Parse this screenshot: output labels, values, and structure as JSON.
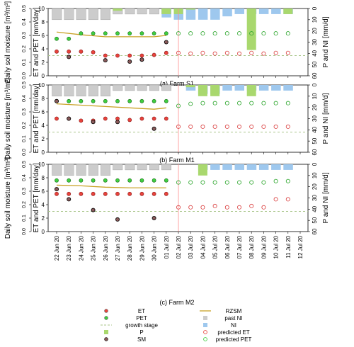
{
  "chart_data": {
    "type": "scatter",
    "dates": [
      "22 Jun 20",
      "23 Jun 20",
      "24 Jun 20",
      "25 Jun 20",
      "26 Jun 20",
      "27 Jun 20",
      "28 Jun 20",
      "29 Jun 20",
      "30 Jun 20",
      "01 Jul 20",
      "02 Jul 20",
      "03 Jul 20",
      "04 Jul 20",
      "05 Jul 20",
      "06 Jul 20",
      "07 Jul 20",
      "08 Jul 20",
      "09 Jul 20",
      "10 Jul 20",
      "11 Jul 20",
      "12 Jul 20"
    ],
    "current_date": "02 Jul 20",
    "left_axis": {
      "label": "ET and PET [mm/day]",
      "range": [
        0,
        10
      ],
      "ticks": [
        0,
        2,
        4,
        6,
        8,
        10
      ]
    },
    "sm_axis": {
      "label": "Daily soil moisture [m³/m³]",
      "range": [
        0,
        0.5
      ],
      "ticks": [
        "0.0",
        "0.1",
        "0.2",
        "0.3",
        "0.4",
        "0.5"
      ]
    },
    "right_axis": {
      "label": "P and NI [mm/d]",
      "range": [
        0,
        60
      ],
      "ticks": [
        0,
        10,
        20,
        30,
        40,
        50,
        60
      ],
      "inverted": true
    },
    "panels": [
      {
        "caption": "(a) Farm S1",
        "et": [
          3.6,
          3.6,
          3.6,
          3.5,
          3.0,
          3.0,
          3.0,
          3.0,
          3.1,
          3.4
        ],
        "pet": [
          5.5,
          5.5,
          6.3,
          6.3,
          6.3,
          6.3,
          6.3,
          6.3,
          6.3,
          6.3
        ],
        "sm": [
          null,
          2.8,
          null,
          null,
          2.3,
          null,
          2.1,
          2.4,
          null,
          5.0
        ],
        "rzsm": [
          [
            22,
            6.5
          ],
          [
            24,
            6.1
          ],
          [
            26,
            5.8
          ],
          [
            28,
            5.8
          ],
          [
            30,
            5.8
          ],
          [
            31,
            6.0
          ]
        ],
        "growth_stage": 3.0,
        "past_ni": [
          10,
          10,
          10,
          10,
          10,
          5,
          5,
          5,
          5,
          5
        ],
        "p": [
          null,
          null,
          null,
          null,
          null,
          2,
          null,
          null,
          null,
          5,
          5,
          1,
          null,
          null,
          null,
          null,
          37,
          null,
          null,
          5,
          null
        ],
        "ni": [
          null,
          null,
          null,
          null,
          null,
          null,
          null,
          null,
          null,
          8,
          10,
          10,
          10,
          10,
          7,
          5,
          5,
          5,
          5,
          5,
          null
        ],
        "pred_et": [
          null,
          null,
          null,
          null,
          null,
          null,
          null,
          null,
          null,
          null,
          3.4,
          3.3,
          3.4,
          3.3,
          3.4,
          3.3,
          3.4,
          3.3,
          3.4,
          3.4,
          null
        ],
        "pred_pet": [
          null,
          null,
          null,
          null,
          null,
          null,
          null,
          null,
          null,
          null,
          6.3,
          6.3,
          6.3,
          6.3,
          6.3,
          6.3,
          6.3,
          6.3,
          6.3,
          6.3,
          null
        ]
      },
      {
        "caption": "(b) Farm M1",
        "et": [
          5.0,
          5.0,
          4.7,
          4.7,
          5.0,
          5.0,
          4.8,
          5.0,
          5.0,
          5.0
        ],
        "pet": [
          7.6,
          7.6,
          7.6,
          7.6,
          7.6,
          7.6,
          7.6,
          7.6,
          7.6,
          7.6
        ],
        "sm": [
          7.6,
          5.0,
          null,
          4.5,
          null,
          4.5,
          null,
          null,
          3.5,
          null
        ],
        "rzsm": [
          [
            22,
            7.2
          ],
          [
            24,
            7.0
          ],
          [
            26,
            6.8
          ],
          [
            28,
            6.6
          ],
          [
            30,
            6.4
          ],
          [
            31,
            6.6
          ]
        ],
        "growth_stage": 3.0,
        "past_ni": [
          10,
          10,
          10,
          10,
          10,
          5,
          5,
          5,
          5,
          5
        ],
        "p": [
          null,
          null,
          null,
          null,
          null,
          null,
          null,
          null,
          null,
          null,
          null,
          2,
          10,
          10,
          null,
          null,
          10,
          null,
          null,
          null,
          null
        ],
        "ni": [
          null,
          null,
          null,
          null,
          null,
          null,
          null,
          null,
          null,
          null,
          null,
          5,
          8,
          8,
          5,
          5,
          5,
          5,
          5,
          5,
          null
        ],
        "pred_et": [
          null,
          null,
          null,
          null,
          null,
          null,
          null,
          null,
          null,
          null,
          3.8,
          3.8,
          3.8,
          3.8,
          3.8,
          3.8,
          3.8,
          3.8,
          3.8,
          3.8,
          null
        ],
        "pred_pet": [
          null,
          null,
          null,
          null,
          null,
          null,
          null,
          null,
          null,
          null,
          6.9,
          7.2,
          7.3,
          7.3,
          7.3,
          7.3,
          7.3,
          7.3,
          7.3,
          7.3,
          null
        ]
      },
      {
        "caption": "(c) Farm M2",
        "et": [
          5.6,
          5.6,
          5.6,
          5.6,
          5.6,
          5.6,
          5.6,
          5.6,
          5.6,
          5.6
        ],
        "pet": [
          7.6,
          7.6,
          7.6,
          7.6,
          7.6,
          7.6,
          7.6,
          7.6,
          7.6,
          7.6
        ],
        "sm": [
          6.3,
          4.8,
          null,
          3.2,
          null,
          1.8,
          null,
          null,
          2.0,
          null
        ],
        "rzsm": [
          [
            22,
            6.9
          ],
          [
            24,
            6.8
          ],
          [
            26,
            6.6
          ],
          [
            28,
            6.5
          ],
          [
            30,
            6.5
          ],
          [
            31,
            6.5
          ]
        ],
        "growth_stage": 3.0,
        "past_ni": [
          10,
          10,
          10,
          10,
          10,
          5,
          5,
          5,
          5,
          5
        ],
        "p": [
          null,
          null,
          null,
          null,
          null,
          null,
          null,
          null,
          null,
          null,
          null,
          null,
          10,
          null,
          null,
          null,
          null,
          null,
          null,
          null,
          null
        ],
        "ni": [
          null,
          null,
          null,
          null,
          null,
          null,
          null,
          null,
          null,
          null,
          null,
          null,
          5,
          5,
          5,
          5,
          5,
          5,
          5,
          5,
          null
        ],
        "pred_et": [
          null,
          null,
          null,
          null,
          null,
          null,
          null,
          null,
          null,
          null,
          3.6,
          3.6,
          3.6,
          3.8,
          3.6,
          3.6,
          3.8,
          3.6,
          4.8,
          4.8,
          null
        ],
        "pred_pet": [
          null,
          null,
          null,
          null,
          null,
          null,
          null,
          null,
          null,
          null,
          7.3,
          7.3,
          7.3,
          7.3,
          7.3,
          7.3,
          7.3,
          7.3,
          7.5,
          7.5,
          null
        ]
      }
    ],
    "colors": {
      "et": "#e8433c",
      "pet": "#3fce3f",
      "rzsm": "#c9a227",
      "growth_stage": "#a9c68a",
      "past_ni": "#cccccc",
      "p": "#a9d86e",
      "ni": "#9ec8ee",
      "sm": "#8a5a5a",
      "current_line": "#ff8c8c"
    },
    "legend": [
      {
        "key": "et",
        "label": "ET",
        "shape": "dot-filled"
      },
      {
        "key": "pet",
        "label": "PET",
        "shape": "dot-filled"
      },
      {
        "key": "growth_stage",
        "label": "growth stage",
        "shape": "dashed-line"
      },
      {
        "key": "p",
        "label": "P",
        "shape": "square"
      },
      {
        "key": "sm",
        "label": "SM",
        "shape": "dot-filled"
      },
      {
        "key": "rzsm",
        "label": "RZSM",
        "shape": "line"
      },
      {
        "key": "past_ni",
        "label": "past NI",
        "shape": "square"
      },
      {
        "key": "ni",
        "label": "NI",
        "shape": "square"
      },
      {
        "key": "pred_et",
        "label": "predicted ET",
        "shape": "dot-open"
      },
      {
        "key": "pred_pet",
        "label": "predicted PET",
        "shape": "dot-open"
      }
    ]
  }
}
